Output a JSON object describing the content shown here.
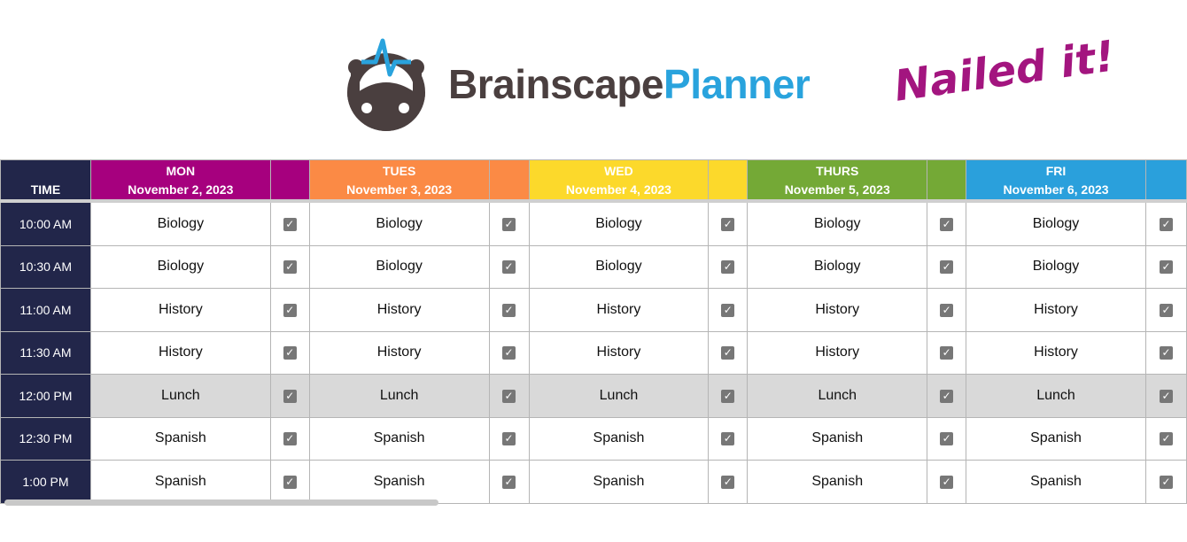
{
  "logo": {
    "brand": "Brainscape",
    "product": "Planner",
    "colors": {
      "brand": "#4a3f3f",
      "product": "#29a3dd"
    }
  },
  "table": {
    "time_header": "TIME",
    "days": [
      {
        "day": "MON",
        "date": "November 2, 2023",
        "color": "#a6007e"
      },
      {
        "day": "TUES",
        "date": "November 3, 2023",
        "color": "#fb8a45"
      },
      {
        "day": "WED",
        "date": "November 4, 2023",
        "color": "#fcd92b"
      },
      {
        "day": "THURS",
        "date": "November 5, 2023",
        "color": "#74a936"
      },
      {
        "day": "FRI",
        "date": "November 6, 2023",
        "color": "#2aa0dc"
      }
    ],
    "rows": [
      {
        "time": "10:00 AM",
        "subject": "Biology",
        "checked": true
      },
      {
        "time": "10:30 AM",
        "subject": "Biology",
        "checked": true
      },
      {
        "time": "11:00 AM",
        "subject": "History",
        "checked": true
      },
      {
        "time": "11:30 AM",
        "subject": "History",
        "checked": true
      },
      {
        "time": "12:00 PM",
        "subject": "Lunch",
        "checked": true
      },
      {
        "time": "12:30 PM",
        "subject": "Spanish",
        "checked": true
      },
      {
        "time": "1:00 PM",
        "subject": "Spanish",
        "checked": true
      }
    ]
  },
  "overlay": {
    "text": "Nailed it!",
    "color": "#a3157f"
  }
}
